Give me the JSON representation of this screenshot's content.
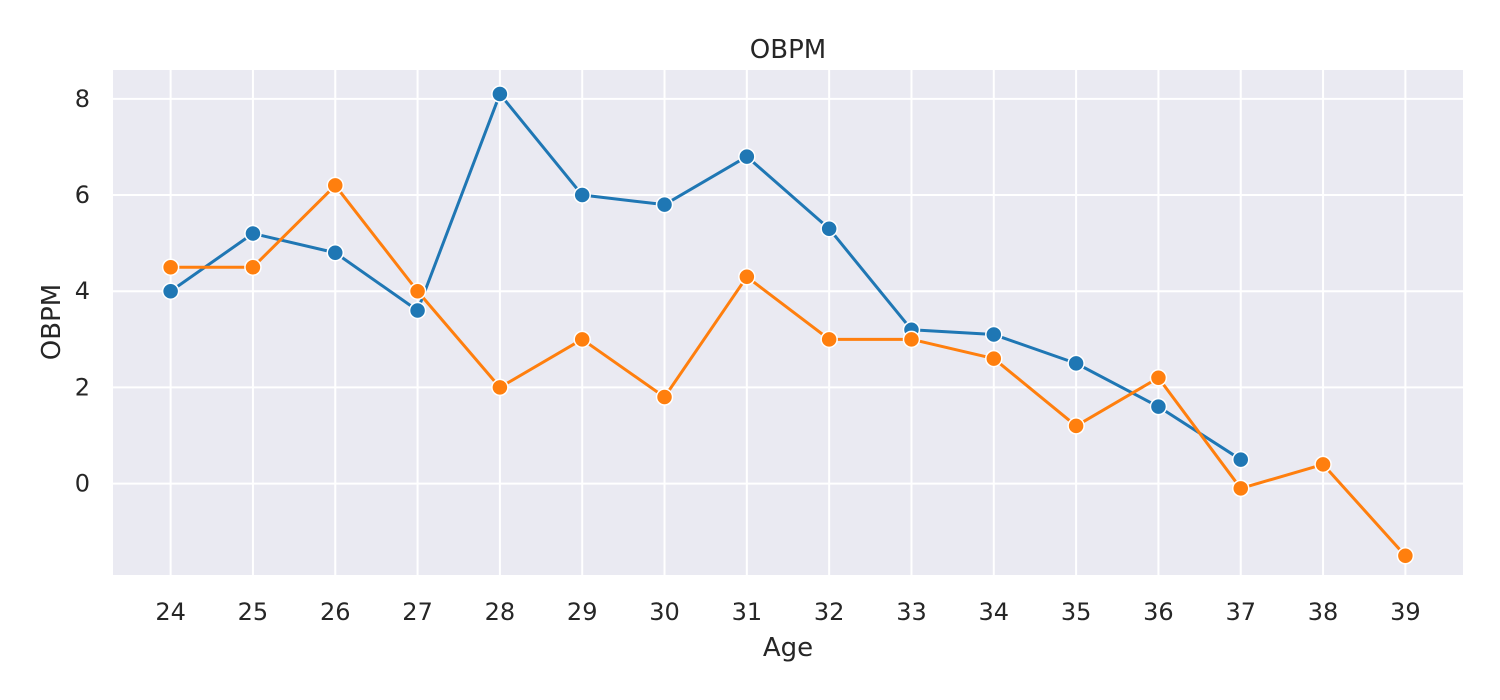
{
  "chart_data": {
    "type": "line",
    "title": "OBPM",
    "xlabel": "Age",
    "ylabel": "OBPM",
    "x": [
      24,
      25,
      26,
      27,
      28,
      29,
      30,
      31,
      32,
      33,
      34,
      35,
      36,
      37,
      38,
      39
    ],
    "xlim": [
      23.3,
      39.7
    ],
    "ylim": [
      -1.9,
      8.6
    ],
    "yticks": [
      0,
      2,
      4,
      6,
      8
    ],
    "grid": true,
    "background": "#EAEAF2",
    "series": [
      {
        "color": "#1F77B4",
        "x": [
          24,
          25,
          26,
          27,
          28,
          29,
          30,
          31,
          32,
          33,
          34,
          35,
          36,
          37
        ],
        "values": [
          4.0,
          5.2,
          4.8,
          3.6,
          8.1,
          6.0,
          5.8,
          6.8,
          5.3,
          3.2,
          3.1,
          2.5,
          1.6,
          0.5
        ]
      },
      {
        "color": "#FF7F0E",
        "x": [
          24,
          25,
          26,
          27,
          28,
          29,
          30,
          31,
          32,
          33,
          34,
          35,
          36,
          37,
          38,
          39
        ],
        "values": [
          4.5,
          4.5,
          6.2,
          4.0,
          2.0,
          3.0,
          1.8,
          4.3,
          3.0,
          3.0,
          2.6,
          1.2,
          2.2,
          -0.1,
          0.4,
          -1.5
        ]
      }
    ]
  }
}
